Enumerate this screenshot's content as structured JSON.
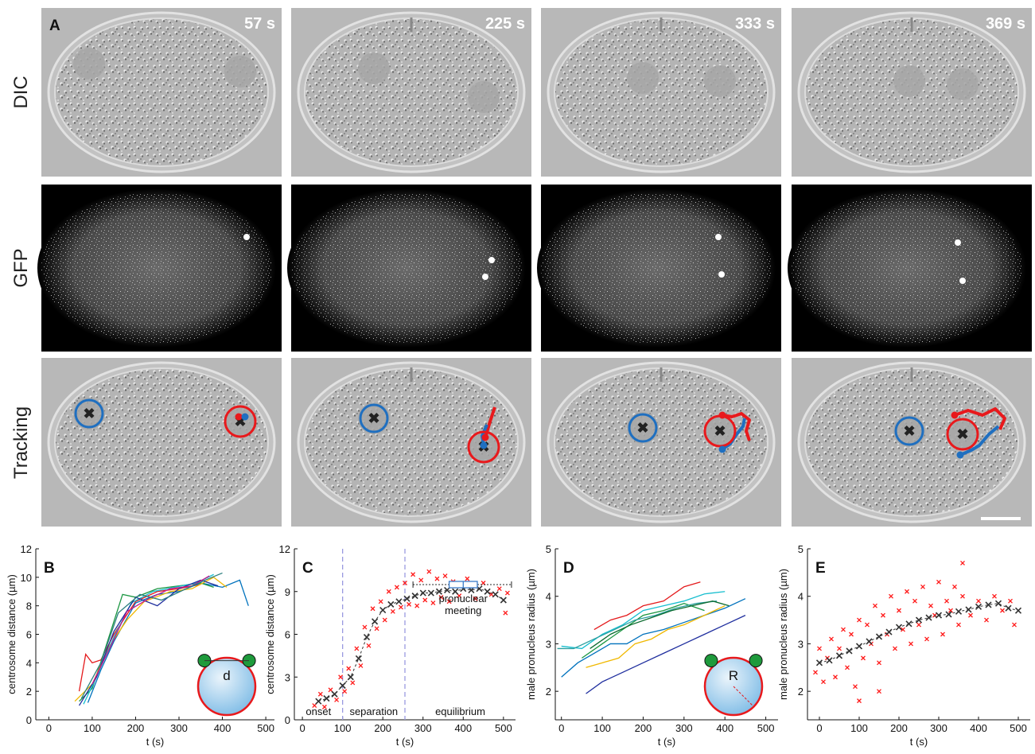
{
  "figure": {
    "panel": "A",
    "rows": [
      "DIC",
      "GFP",
      "Tracking"
    ],
    "times": [
      "57 s",
      "225 s",
      "333 s",
      "369 s"
    ]
  },
  "chart_data": [
    {
      "type": "line",
      "panel": "B",
      "xlabel": "t (s)",
      "ylabel": "centrosome distance (µm)",
      "xlim": [
        -30,
        520
      ],
      "ylim": [
        0,
        12
      ],
      "xticks": [
        0,
        100,
        200,
        300,
        400,
        500
      ],
      "yticks": [
        0,
        2,
        4,
        6,
        8,
        10,
        12
      ],
      "inset_label": "d",
      "series": [
        {
          "color": "#e41a1c",
          "x": [
            70,
            85,
            100,
            120,
            150,
            200,
            250,
            300,
            350
          ],
          "values": [
            2.0,
            4.6,
            4.0,
            4.2,
            6.0,
            8.3,
            9.0,
            9.2,
            9.5
          ]
        },
        {
          "color": "#0072bd",
          "x": [
            90,
            120,
            150,
            200,
            250,
            300,
            350,
            400,
            440,
            460
          ],
          "values": [
            1.2,
            3.5,
            5.5,
            8.2,
            8.8,
            9.0,
            9.6,
            9.3,
            9.8,
            8.0
          ]
        },
        {
          "color": "#1a9641",
          "x": [
            70,
            100,
            130,
            170,
            200,
            250,
            300,
            350,
            380
          ],
          "values": [
            1.3,
            2.2,
            5.0,
            8.8,
            8.6,
            9.2,
            9.4,
            9.6,
            9.3
          ]
        },
        {
          "color": "#f0b800",
          "x": [
            60,
            100,
            140,
            180,
            220,
            280,
            330,
            380,
            410
          ],
          "values": [
            1.3,
            2.5,
            5.2,
            7.0,
            8.3,
            9.0,
            9.2,
            10.0,
            9.3
          ]
        },
        {
          "color": "#17becf",
          "x": [
            80,
            110,
            150,
            190,
            240,
            290,
            340,
            380
          ],
          "values": [
            1.1,
            3.0,
            5.8,
            8.2,
            9.0,
            9.3,
            9.6,
            10.2
          ]
        },
        {
          "color": "#1f2e9e",
          "x": [
            70,
            110,
            150,
            200,
            250,
            300,
            350,
            390
          ],
          "values": [
            1.0,
            3.0,
            6.2,
            8.6,
            8.0,
            9.2,
            9.8,
            9.4
          ]
        },
        {
          "color": "#c2188b",
          "x": [
            100,
            140,
            180,
            230,
            280,
            330,
            370
          ],
          "values": [
            2.5,
            5.0,
            7.6,
            8.5,
            9.2,
            9.4,
            10.1
          ]
        },
        {
          "color": "#2c7f7f",
          "x": [
            75,
            120,
            160,
            210,
            260,
            310,
            360,
            400
          ],
          "values": [
            1.5,
            4.0,
            7.5,
            8.8,
            8.4,
            9.1,
            9.8,
            10.3
          ]
        }
      ]
    },
    {
      "type": "scatter",
      "panel": "C",
      "xlabel": "t (s)",
      "ylabel": "centrosome distance (µm)",
      "xlim": [
        -20,
        530
      ],
      "ylim": [
        0,
        12
      ],
      "xticks": [
        0,
        100,
        200,
        300,
        400,
        500
      ],
      "yticks": [
        0,
        3,
        6,
        9,
        12
      ],
      "color": "#ff1a1a",
      "mean_color": "#333333",
      "x": [
        30,
        45,
        55,
        70,
        85,
        95,
        105,
        115,
        125,
        135,
        145,
        155,
        165,
        175,
        185,
        195,
        205,
        215,
        225,
        235,
        245,
        255,
        265,
        275,
        285,
        295,
        305,
        315,
        325,
        335,
        345,
        355,
        365,
        375,
        390,
        410,
        430,
        450,
        470,
        490,
        505,
        510
      ],
      "values": [
        1.0,
        1.8,
        0.9,
        2.1,
        1.4,
        3.0,
        2.0,
        3.6,
        2.6,
        5.0,
        3.8,
        6.5,
        5.2,
        7.8,
        6.4,
        8.3,
        7.0,
        9.0,
        7.6,
        9.3,
        7.9,
        9.6,
        8.1,
        10.2,
        8.0,
        9.8,
        8.4,
        10.4,
        8.2,
        9.9,
        8.6,
        10.1,
        8.3,
        9.7,
        8.7,
        9.9,
        8.5,
        9.6,
        8.8,
        9.2,
        7.5,
        8.9
      ],
      "mean_x": [
        40,
        60,
        80,
        100,
        120,
        140,
        160,
        180,
        200,
        220,
        240,
        260,
        280,
        300,
        320,
        340,
        360,
        380,
        400,
        420,
        440,
        460,
        480,
        500
      ],
      "mean_values": [
        1.3,
        1.5,
        1.8,
        2.4,
        3.0,
        4.3,
        5.8,
        6.9,
        7.7,
        8.1,
        8.3,
        8.5,
        8.7,
        8.9,
        8.9,
        9.0,
        9.1,
        9.0,
        9.2,
        9.1,
        9.2,
        9.0,
        8.8,
        8.4
      ],
      "vlines": [
        100,
        255
      ],
      "vline_color": "#9a9ae0",
      "phases": [
        "onset",
        "separation",
        "equilibrium"
      ],
      "boxplot": {
        "whisker_low": 275,
        "q1": 365,
        "median": 400,
        "q3": 435,
        "whisker_high": 520,
        "color": "#3a7bc8"
      },
      "boxplot_label": [
        "pronuclear",
        "meeting"
      ]
    },
    {
      "type": "line",
      "panel": "D",
      "xlabel": "t (s)",
      "ylabel": "male pronucleus radius (µm)",
      "xlim": [
        -15,
        530
      ],
      "ylim": [
        1.4,
        5
      ],
      "xticks": [
        0,
        100,
        200,
        300,
        400,
        500
      ],
      "yticks": [
        2,
        3,
        4,
        5
      ],
      "inset_label": "R",
      "series": [
        {
          "color": "#17becf",
          "x": [
            0,
            50,
            100,
            150,
            200,
            250,
            300,
            350,
            400
          ],
          "values": [
            2.95,
            2.9,
            3.2,
            3.4,
            3.7,
            3.8,
            3.9,
            4.05,
            4.1
          ]
        },
        {
          "color": "#e41a1c",
          "x": [
            80,
            120,
            160,
            200,
            250,
            300,
            340
          ],
          "values": [
            3.3,
            3.5,
            3.6,
            3.8,
            3.9,
            4.2,
            4.3
          ]
        },
        {
          "color": "#1a9641",
          "x": [
            50,
            100,
            150,
            200,
            250,
            300,
            350
          ],
          "values": [
            2.7,
            3.0,
            3.3,
            3.6,
            3.7,
            3.85,
            3.7
          ]
        },
        {
          "color": "#0072bd",
          "x": [
            0,
            40,
            80,
            120,
            160,
            200,
            250,
            300,
            350,
            400,
            450
          ],
          "values": [
            2.3,
            2.6,
            2.8,
            3.0,
            3.0,
            3.2,
            3.3,
            3.45,
            3.6,
            3.75,
            3.95
          ]
        },
        {
          "color": "#f0b800",
          "x": [
            60,
            100,
            140,
            180,
            220,
            260,
            300,
            350,
            400
          ],
          "values": [
            2.5,
            2.6,
            2.7,
            3.0,
            3.1,
            3.3,
            3.4,
            3.6,
            3.8
          ]
        },
        {
          "color": "#1f2e9e",
          "x": [
            60,
            100,
            150,
            200,
            250,
            300,
            350,
            400,
            450
          ],
          "values": [
            1.95,
            2.2,
            2.4,
            2.6,
            2.8,
            3.0,
            3.2,
            3.4,
            3.6
          ]
        },
        {
          "color": "#2c9f9f",
          "x": [
            -10,
            30,
            80,
            130,
            180,
            230,
            280,
            330,
            380
          ],
          "values": [
            2.9,
            2.9,
            3.1,
            3.3,
            3.5,
            3.6,
            3.75,
            3.85,
            3.9
          ]
        },
        {
          "color": "#0b6b2e",
          "x": [
            70,
            120,
            170,
            220,
            270,
            320,
            370,
            410
          ],
          "values": [
            2.9,
            3.2,
            3.4,
            3.55,
            3.7,
            3.8,
            3.9,
            3.8
          ]
        }
      ]
    },
    {
      "type": "scatter",
      "panel": "E",
      "xlabel": "t (s)",
      "ylabel": "male pronucleus radius (µm)",
      "xlim": [
        -30,
        530
      ],
      "ylim": [
        1.4,
        5
      ],
      "xticks": [
        0,
        100,
        200,
        300,
        400,
        500
      ],
      "yticks": [
        2,
        3,
        4,
        5
      ],
      "color": "#ff1a1a",
      "mean_color": "#333333",
      "x": [
        -10,
        0,
        10,
        20,
        30,
        40,
        50,
        60,
        70,
        80,
        90,
        100,
        110,
        120,
        130,
        140,
        150,
        160,
        170,
        180,
        190,
        200,
        210,
        220,
        230,
        240,
        250,
        260,
        270,
        280,
        290,
        300,
        310,
        320,
        330,
        340,
        350,
        360,
        380,
        400,
        420,
        440,
        460,
        480,
        490,
        150,
        100,
        360
      ],
      "values": [
        2.4,
        2.9,
        2.2,
        2.7,
        3.1,
        2.3,
        2.9,
        3.3,
        2.5,
        3.2,
        2.1,
        3.5,
        2.7,
        3.4,
        3.0,
        3.8,
        2.6,
        3.6,
        3.2,
        4.0,
        2.9,
        3.7,
        3.3,
        4.1,
        3.0,
        3.9,
        3.4,
        4.2,
        3.1,
        3.8,
        3.6,
        4.3,
        3.2,
        3.9,
        3.7,
        4.2,
        3.4,
        4.0,
        3.6,
        3.9,
        3.5,
        4.0,
        3.7,
        3.9,
        3.4,
        2.0,
        1.8,
        4.7
      ],
      "mean_x": [
        0,
        25,
        50,
        75,
        100,
        125,
        150,
        175,
        200,
        225,
        250,
        275,
        300,
        325,
        350,
        375,
        400,
        425,
        450,
        475,
        500
      ],
      "mean_values": [
        2.6,
        2.65,
        2.75,
        2.85,
        2.95,
        3.05,
        3.15,
        3.25,
        3.35,
        3.42,
        3.5,
        3.55,
        3.6,
        3.62,
        3.68,
        3.72,
        3.78,
        3.82,
        3.85,
        3.75,
        3.7
      ]
    }
  ]
}
